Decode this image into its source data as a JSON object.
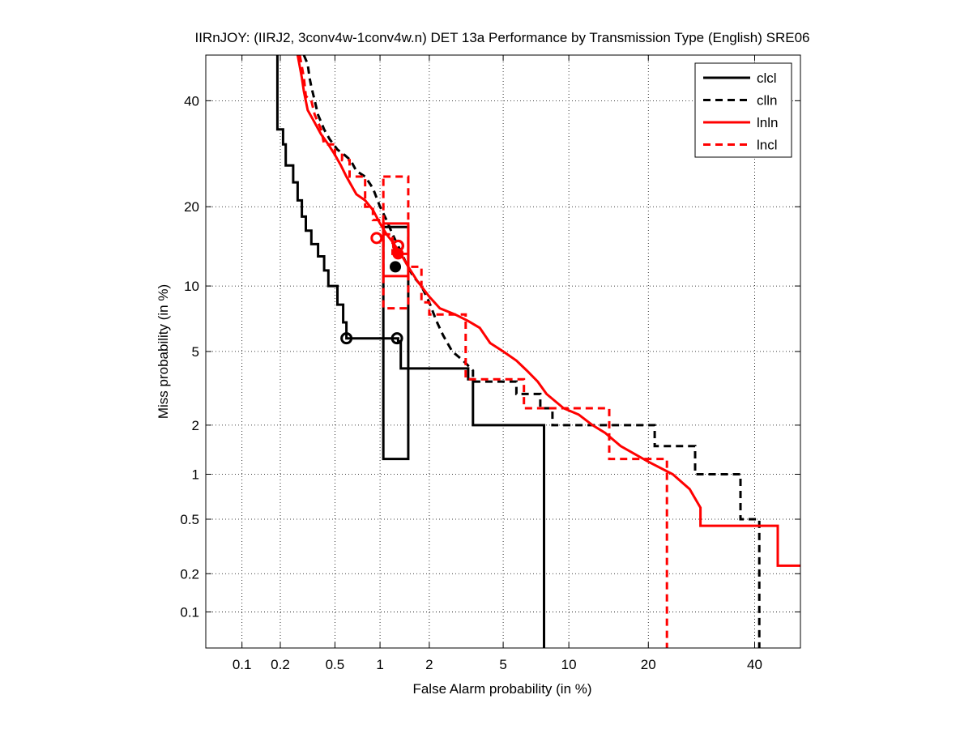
{
  "chart_data": {
    "type": "line",
    "scale": "probit",
    "title": "IIRnJOY: (IIRJ2, 3conv4w-1conv4w.n) DET 13a Performance by Transmission Type (English) SRE06",
    "xlabel": "False Alarm probability (in %)",
    "ylabel": "Miss probability (in %)",
    "xlim": [
      0.05,
      50
    ],
    "ylim": [
      0.05,
      50
    ],
    "xticks": [
      0.1,
      0.2,
      0.5,
      1,
      2,
      5,
      10,
      20,
      40
    ],
    "xtick_labels": [
      "0.1",
      "0.2",
      "0.5",
      "1",
      "2",
      "5",
      "10",
      "20",
      "40"
    ],
    "yticks": [
      0.1,
      0.2,
      0.5,
      1,
      2,
      5,
      10,
      20,
      40
    ],
    "ytick_labels": [
      "0.1",
      "0.2",
      "0.5",
      "1",
      "2",
      "5",
      "10",
      "20",
      "40"
    ],
    "grid": true,
    "legend_position": "top-right",
    "series": [
      {
        "name": "clcl",
        "color": "#000000",
        "dash": "solid",
        "points": [
          [
            0.19,
            50
          ],
          [
            0.19,
            34
          ],
          [
            0.21,
            34
          ],
          [
            0.21,
            31
          ],
          [
            0.22,
            31
          ],
          [
            0.22,
            27
          ],
          [
            0.25,
            27
          ],
          [
            0.25,
            24
          ],
          [
            0.27,
            24
          ],
          [
            0.27,
            21
          ],
          [
            0.29,
            21
          ],
          [
            0.29,
            18.5
          ],
          [
            0.31,
            18.5
          ],
          [
            0.31,
            16.5
          ],
          [
            0.34,
            16.5
          ],
          [
            0.34,
            14.7
          ],
          [
            0.38,
            14.7
          ],
          [
            0.38,
            13.2
          ],
          [
            0.42,
            13.2
          ],
          [
            0.42,
            11.6
          ],
          [
            0.45,
            11.6
          ],
          [
            0.45,
            10
          ],
          [
            0.52,
            10
          ],
          [
            0.52,
            8.3
          ],
          [
            0.57,
            8.3
          ],
          [
            0.57,
            6.9
          ],
          [
            0.6,
            6.9
          ],
          [
            0.6,
            5.8
          ],
          [
            1.3,
            5.8
          ],
          [
            1.3,
            5.6
          ],
          [
            1.35,
            5.6
          ],
          [
            1.35,
            4.1
          ],
          [
            3.3,
            4.1
          ],
          [
            3.3,
            3.6
          ],
          [
            3.5,
            3.6
          ],
          [
            3.5,
            2
          ],
          [
            7.8,
            2
          ],
          [
            7.8,
            0.05
          ]
        ],
        "actual_dcf_point": [
          1.28,
          5.8
        ],
        "min_dcf_point": [
          0.6,
          5.8
        ],
        "confidence_box": {
          "x": [
            1.05,
            1.5
          ],
          "y": [
            1.25,
            17
          ]
        },
        "eer_marker": [
          1.25,
          12
        ]
      },
      {
        "name": "clln",
        "color": "#000000",
        "dash": "dashed",
        "points": [
          [
            0.3,
            50
          ],
          [
            0.32,
            48
          ],
          [
            0.33,
            45
          ],
          [
            0.34,
            43
          ],
          [
            0.36,
            40
          ],
          [
            0.38,
            37
          ],
          [
            0.42,
            34
          ],
          [
            0.46,
            32
          ],
          [
            0.52,
            30
          ],
          [
            0.58,
            29
          ],
          [
            0.64,
            28
          ],
          [
            0.7,
            26
          ],
          [
            0.8,
            25
          ],
          [
            0.9,
            23
          ],
          [
            1.0,
            20
          ],
          [
            1.1,
            18
          ],
          [
            1.2,
            16
          ],
          [
            1.3,
            14.5
          ],
          [
            1.45,
            12.5
          ],
          [
            1.6,
            11
          ],
          [
            1.8,
            10
          ],
          [
            2.0,
            8.5
          ],
          [
            2.2,
            7
          ],
          [
            2.4,
            6
          ],
          [
            2.7,
            5
          ],
          [
            3.1,
            4.5
          ],
          [
            3.5,
            4
          ],
          [
            3.5,
            3.5
          ],
          [
            5.8,
            3.5
          ],
          [
            5.8,
            3
          ],
          [
            7.5,
            3
          ],
          [
            7.5,
            2.5
          ],
          [
            8.5,
            2.5
          ],
          [
            8.5,
            2
          ],
          [
            21,
            2
          ],
          [
            21,
            1.5
          ],
          [
            28,
            1.5
          ],
          [
            28,
            1
          ],
          [
            37,
            1
          ],
          [
            37,
            0.5
          ],
          [
            41,
            0.5
          ],
          [
            41,
            0.05
          ]
        ],
        "min_dcf_point": [
          1.3,
          14.5
        ]
      },
      {
        "name": "lnln",
        "color": "#ff0000",
        "dash": "solid",
        "points": [
          [
            0.27,
            50
          ],
          [
            0.29,
            45
          ],
          [
            0.3,
            42
          ],
          [
            0.32,
            38
          ],
          [
            0.35,
            36
          ],
          [
            0.4,
            33
          ],
          [
            0.45,
            31
          ],
          [
            0.5,
            29
          ],
          [
            0.55,
            27
          ],
          [
            0.6,
            25
          ],
          [
            0.7,
            22
          ],
          [
            0.8,
            21
          ],
          [
            0.9,
            19.5
          ],
          [
            1.0,
            17.5
          ],
          [
            1.1,
            16
          ],
          [
            1.2,
            15
          ],
          [
            1.35,
            13.5
          ],
          [
            1.5,
            12
          ],
          [
            1.7,
            10.5
          ],
          [
            2.0,
            9
          ],
          [
            2.3,
            8
          ],
          [
            2.8,
            7.5
          ],
          [
            3.3,
            7
          ],
          [
            3.8,
            6.5
          ],
          [
            4.3,
            5.5
          ],
          [
            5.0,
            5
          ],
          [
            5.8,
            4.5
          ],
          [
            6.5,
            4
          ],
          [
            7.3,
            3.5
          ],
          [
            8,
            3
          ],
          [
            9.5,
            2.5
          ],
          [
            11,
            2.3
          ],
          [
            12.5,
            2
          ],
          [
            14,
            1.8
          ],
          [
            16,
            1.5
          ],
          [
            20,
            1.2
          ],
          [
            24,
            1
          ],
          [
            27,
            0.8
          ],
          [
            29,
            0.6
          ],
          [
            29,
            0.45
          ],
          [
            45,
            0.45
          ],
          [
            45,
            0.23
          ],
          [
            50,
            0.23
          ]
        ],
        "actual_dcf_point": [
          0.95,
          15.5
        ],
        "confidence_box": {
          "x": [
            1.05,
            1.5
          ],
          "y": [
            11,
            17.5
          ]
        },
        "eer_marker": [
          1.3,
          13.5
        ]
      },
      {
        "name": "lncl",
        "color": "#ff0000",
        "dash": "dashed",
        "points": [
          [
            0.28,
            50
          ],
          [
            0.3,
            45
          ],
          [
            0.31,
            41
          ],
          [
            0.34,
            40
          ],
          [
            0.36,
            37
          ],
          [
            0.4,
            34
          ],
          [
            0.42,
            31
          ],
          [
            0.5,
            31
          ],
          [
            0.5,
            29
          ],
          [
            0.56,
            29
          ],
          [
            0.56,
            28
          ],
          [
            0.63,
            28
          ],
          [
            0.63,
            25
          ],
          [
            0.8,
            25
          ],
          [
            0.8,
            20
          ],
          [
            0.9,
            20
          ],
          [
            0.9,
            18
          ],
          [
            1.05,
            18
          ],
          [
            1.05,
            16
          ],
          [
            1.2,
            16
          ],
          [
            1.2,
            13.5
          ],
          [
            1.5,
            13.5
          ],
          [
            1.5,
            12
          ],
          [
            1.8,
            12
          ],
          [
            1.8,
            8.5
          ],
          [
            2.0,
            8.5
          ],
          [
            2.0,
            7.5
          ],
          [
            3.2,
            7.5
          ],
          [
            3.2,
            3.6
          ],
          [
            6.3,
            3.6
          ],
          [
            6.3,
            2.5
          ],
          [
            14.5,
            2.5
          ],
          [
            14.5,
            1.25
          ],
          [
            23,
            1.25
          ],
          [
            23,
            0.05
          ]
        ],
        "min_dcf_point": [
          1.3,
          14.5
        ],
        "confidence_box": {
          "x": [
            1.05,
            1.5
          ],
          "y": [
            8,
            25
          ]
        }
      }
    ]
  }
}
